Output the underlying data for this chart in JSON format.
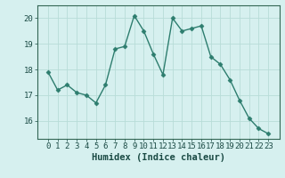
{
  "x": [
    0,
    1,
    2,
    3,
    4,
    5,
    6,
    7,
    8,
    9,
    10,
    11,
    12,
    13,
    14,
    15,
    16,
    17,
    18,
    19,
    20,
    21,
    22,
    23
  ],
  "y": [
    17.9,
    17.2,
    17.4,
    17.1,
    17.0,
    16.7,
    17.4,
    18.8,
    18.9,
    20.1,
    19.5,
    18.6,
    17.8,
    20.0,
    19.5,
    19.6,
    19.7,
    18.5,
    18.2,
    17.6,
    16.8,
    16.1,
    15.7,
    15.5
  ],
  "line_color": "#2d7d6e",
  "marker": "D",
  "marker_size": 2.5,
  "bg_color": "#d6f0ef",
  "grid_color_minor": "#c8e8e5",
  "grid_color_major": "#b8dcd8",
  "xlabel": "Humidex (Indice chaleur)",
  "ylim": [
    15.3,
    20.5
  ],
  "yticks": [
    16,
    17,
    18,
    19,
    20
  ],
  "xticks": [
    0,
    1,
    2,
    3,
    4,
    5,
    6,
    7,
    8,
    9,
    10,
    11,
    12,
    13,
    14,
    15,
    16,
    17,
    18,
    19,
    20,
    21,
    22,
    23
  ],
  "xlabel_fontsize": 7.5,
  "tick_fontsize": 6.5,
  "linewidth": 1.0
}
